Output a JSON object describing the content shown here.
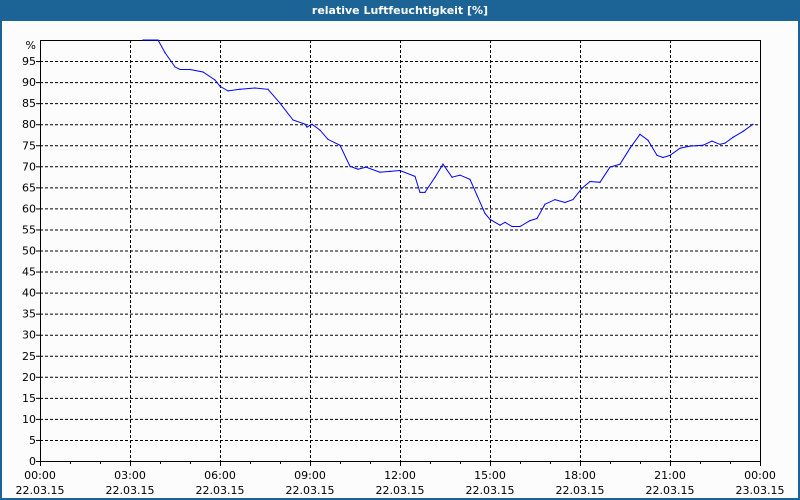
{
  "window": {
    "title": "relative Luftfeuchtigkeit [%]"
  },
  "chart_data": {
    "type": "line",
    "title": "relative Luftfeuchtigkeit [%]",
    "ylabel": "%",
    "xlabel": "",
    "ylim": [
      0,
      100
    ],
    "y_ticks": [
      0,
      5,
      10,
      15,
      20,
      25,
      30,
      35,
      40,
      45,
      50,
      55,
      60,
      65,
      70,
      75,
      80,
      85,
      90,
      95
    ],
    "xlim": [
      "22.03.15 00:00",
      "23.03.15 00:00"
    ],
    "x_ticks": [
      {
        "time": "00:00",
        "date": "22.03.15"
      },
      {
        "time": "03:00",
        "date": "22.03.15"
      },
      {
        "time": "06:00",
        "date": "22.03.15"
      },
      {
        "time": "09:00",
        "date": "22.03.15"
      },
      {
        "time": "12:00",
        "date": "22.03.15"
      },
      {
        "time": "15:00",
        "date": "22.03.15"
      },
      {
        "time": "18:00",
        "date": "22.03.15"
      },
      {
        "time": "21:00",
        "date": "22.03.15"
      },
      {
        "time": "00:00",
        "date": "23.03.15"
      }
    ],
    "grid": true,
    "line_color": "#0000ff",
    "series": [
      {
        "x": [
          "03:26",
          "03:56",
          "04:10",
          "04:30",
          "04:40",
          "05:00",
          "05:26",
          "05:50",
          "06:00",
          "06:16",
          "06:40",
          "07:10",
          "07:36",
          "08:00",
          "08:26",
          "08:50",
          "08:54",
          "09:04",
          "09:20",
          "09:36",
          "10:00",
          "10:20",
          "10:36",
          "10:52",
          "11:20",
          "11:40",
          "12:00",
          "12:30",
          "12:40",
          "12:50",
          "13:10",
          "13:26",
          "13:44",
          "14:00",
          "14:20",
          "14:34",
          "14:50",
          "15:00",
          "15:20",
          "15:30",
          "15:44",
          "16:00",
          "16:20",
          "16:34",
          "16:50",
          "17:10",
          "17:30",
          "17:46",
          "18:04",
          "18:20",
          "18:40",
          "19:00",
          "19:20",
          "19:40",
          "20:00",
          "20:16",
          "20:34",
          "20:46",
          "21:00",
          "21:20",
          "21:40",
          "22:06",
          "22:24",
          "22:40",
          "22:50",
          "23:06",
          "23:26",
          "23:46"
        ],
        "y": [
          100,
          100,
          97,
          93.6,
          93,
          93,
          92.4,
          90.5,
          89,
          87.9,
          88.3,
          88.6,
          88.3,
          85,
          81,
          80,
          79.3,
          80,
          78.6,
          76.4,
          75,
          70,
          69.3,
          69.8,
          68.6,
          68.8,
          69,
          67.6,
          63.8,
          63.8,
          67.4,
          70.5,
          67.4,
          67.9,
          66.9,
          63.1,
          58.8,
          57.4,
          56,
          56.7,
          55.7,
          55.7,
          57.1,
          57.6,
          61,
          62.1,
          61.4,
          62.1,
          64.8,
          66.4,
          66.2,
          69.8,
          70.5,
          74.3,
          77.6,
          76.2,
          72.6,
          72.1,
          72.6,
          74.3,
          74.8,
          75,
          76,
          75.2,
          75.5,
          76.9,
          78.3,
          80
        ]
      }
    ]
  }
}
